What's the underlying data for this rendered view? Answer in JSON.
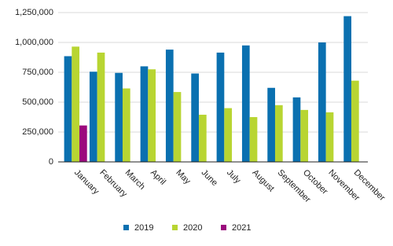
{
  "chart_data": {
    "type": "bar",
    "categories": [
      "January",
      "February",
      "March",
      "April",
      "May",
      "June",
      "July",
      "August",
      "September",
      "October",
      "November",
      "December"
    ],
    "series": [
      {
        "name": "2019",
        "color": "#0a70b0",
        "values": [
          885000,
          755000,
          745000,
          800000,
          940000,
          740000,
          915000,
          975000,
          620000,
          540000,
          1000000,
          1220000
        ]
      },
      {
        "name": "2020",
        "color": "#b8d532",
        "values": [
          965000,
          915000,
          615000,
          775000,
          585000,
          395000,
          450000,
          375000,
          475000,
          435000,
          415000,
          680000
        ]
      },
      {
        "name": "2021",
        "color": "#9b0a7d",
        "values": [
          305000,
          null,
          null,
          null,
          null,
          null,
          null,
          null,
          null,
          null,
          null,
          null
        ]
      }
    ],
    "ylim": [
      0,
      1250000
    ],
    "yticks": [
      0,
      {
        "value": 250000,
        "label": "250,000"
      },
      {
        "value": 500000,
        "label": "500,000"
      },
      {
        "value": 750000,
        "label": "750,000"
      },
      {
        "value": 1000000,
        "label": "1,000,000"
      },
      {
        "value": 1250000,
        "label": "1,250,000"
      }
    ],
    "grid": true,
    "legend": "bottom"
  }
}
